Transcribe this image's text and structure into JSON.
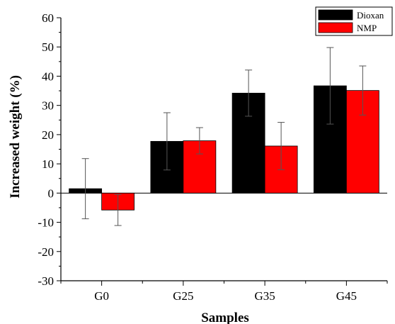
{
  "chart_data": {
    "type": "bar",
    "xlabel": "Samples",
    "ylabel": "Increased weight (%)",
    "categories": [
      "G0",
      "G25",
      "G35",
      "G45"
    ],
    "ylim": [
      -30,
      60
    ],
    "yticks": [
      -30,
      -20,
      -10,
      0,
      10,
      20,
      30,
      40,
      50,
      60
    ],
    "series": [
      {
        "name": "Dioxan",
        "color": "#000000",
        "values": [
          1.5,
          17.7,
          34.2,
          36.7
        ],
        "errors": [
          10.3,
          9.8,
          7.9,
          13.1
        ]
      },
      {
        "name": "NMP",
        "color": "#ff0000",
        "values": [
          -5.8,
          17.9,
          16.1,
          35.1
        ],
        "errors": [
          5.3,
          4.5,
          8.1,
          8.4
        ]
      }
    ],
    "legend_position": "top-right",
    "grid": false
  }
}
